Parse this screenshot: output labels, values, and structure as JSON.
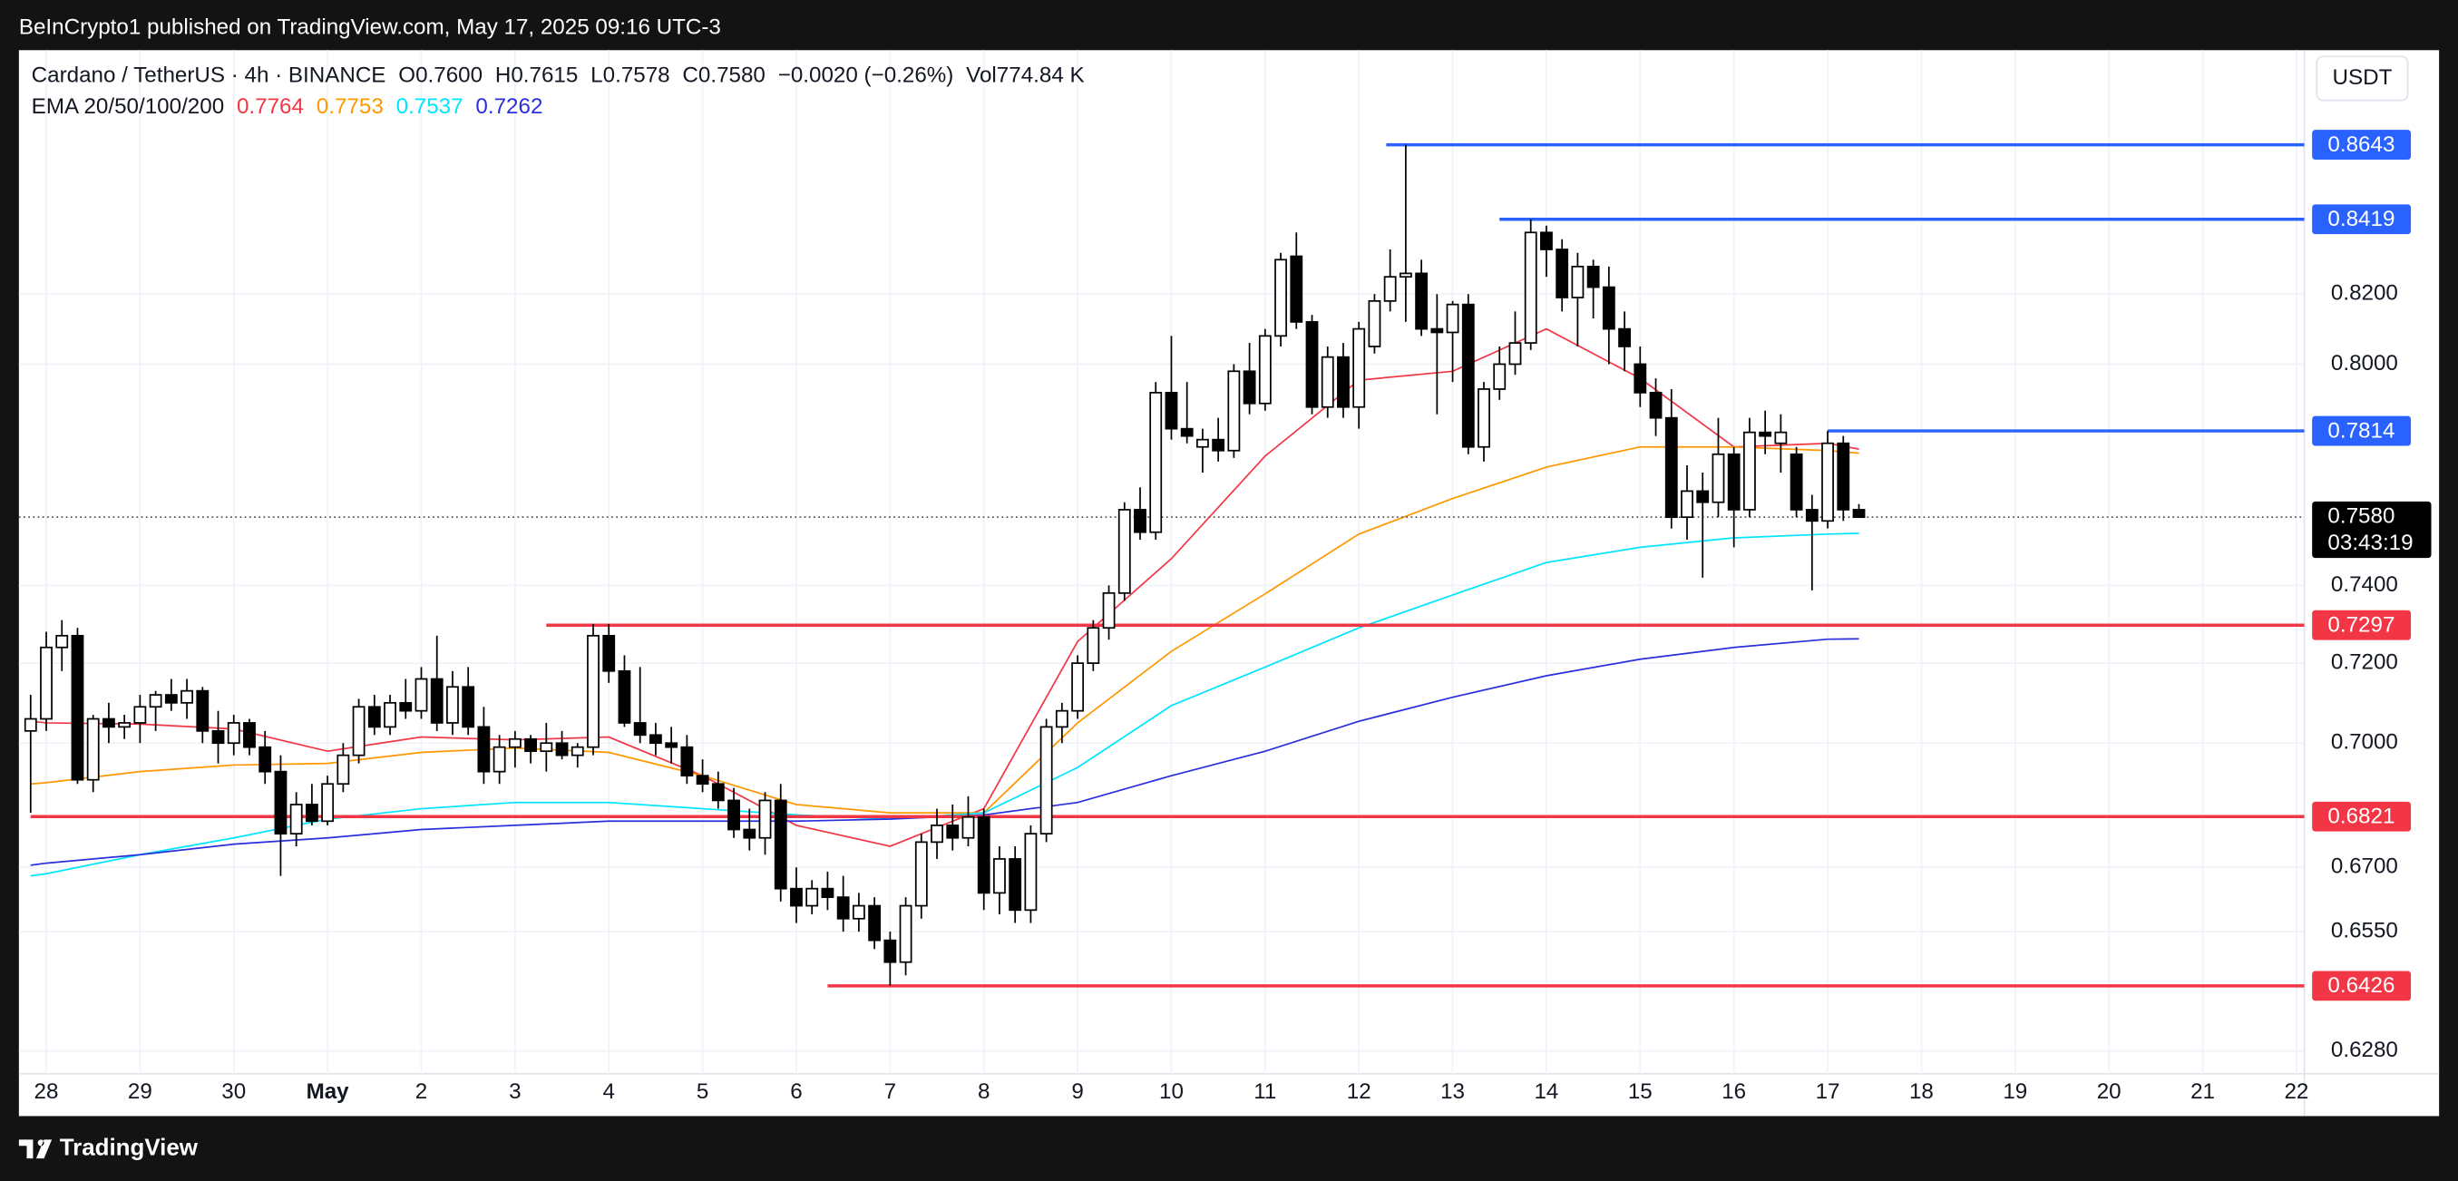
{
  "header": {
    "published": "BeInCrypto1 published on TradingView.com, May 17, 2025 09:16 UTC-3",
    "symbol": "Cardano / TetherUS · 4h · BINANCE",
    "ohlc": [
      {
        "key": "O",
        "value": "0.7600"
      },
      {
        "key": "H",
        "value": "0.7615"
      },
      {
        "key": "L",
        "value": "0.7578"
      },
      {
        "key": "C",
        "value": "0.7580"
      }
    ],
    "change": "−0.0020 (−0.26%)",
    "volume": {
      "key": "Vol",
      "value": "774.84 K"
    },
    "ema_label": "EMA 20/50/100/200"
  },
  "footer": {
    "brand": "TradingView"
  },
  "chart_data": {
    "type": "candlestick",
    "log_scale": true,
    "grid": true,
    "currency": "USDT",
    "countdown": "03:43:19",
    "up_color": "#ffffff",
    "down_color": "#000000",
    "wick_color": "#000000",
    "xlim": [
      -7,
      578
    ],
    "ylim": [
      0.623,
      0.8936
    ],
    "xticks": [
      {
        "value": 0,
        "label": "28"
      },
      {
        "value": 24,
        "label": "29"
      },
      {
        "value": 48,
        "label": "30"
      },
      {
        "value": 72,
        "label": "May"
      },
      {
        "value": 96,
        "label": "2"
      },
      {
        "value": 120,
        "label": "3"
      },
      {
        "value": 144,
        "label": "4"
      },
      {
        "value": 168,
        "label": "5"
      },
      {
        "value": 192,
        "label": "6"
      },
      {
        "value": 216,
        "label": "7"
      },
      {
        "value": 240,
        "label": "8"
      },
      {
        "value": 264,
        "label": "9"
      },
      {
        "value": 288,
        "label": "10"
      },
      {
        "value": 312,
        "label": "11"
      },
      {
        "value": 336,
        "label": "12"
      },
      {
        "value": 360,
        "label": "13"
      },
      {
        "value": 384,
        "label": "14"
      },
      {
        "value": 408,
        "label": "15"
      },
      {
        "value": 432,
        "label": "16"
      },
      {
        "value": 456,
        "label": "17"
      },
      {
        "value": 480,
        "label": "18"
      },
      {
        "value": 504,
        "label": "19"
      },
      {
        "value": 528,
        "label": "20"
      },
      {
        "value": 552,
        "label": "21"
      },
      {
        "value": 576,
        "label": "22"
      }
    ],
    "yticks": [
      {
        "value": 0.628,
        "label": "0.6280"
      },
      {
        "value": 0.655,
        "label": "0.6550"
      },
      {
        "value": 0.67,
        "label": "0.6700"
      },
      {
        "value": 0.7,
        "label": "0.7000"
      },
      {
        "value": 0.72,
        "label": "0.7200"
      },
      {
        "value": 0.74,
        "label": "0.7400"
      },
      {
        "value": 0.8,
        "label": "0.8000"
      },
      {
        "value": 0.82,
        "label": "0.8200"
      }
    ],
    "x": [
      -4,
      0,
      4,
      8,
      12,
      16,
      20,
      24,
      28,
      32,
      36,
      40,
      44,
      48,
      52,
      56,
      60,
      64,
      68,
      72,
      76,
      80,
      84,
      88,
      92,
      96,
      100,
      104,
      108,
      112,
      116,
      120,
      124,
      128,
      132,
      136,
      140,
      144,
      148,
      152,
      156,
      160,
      164,
      168,
      172,
      176,
      180,
      184,
      188,
      192,
      196,
      200,
      204,
      208,
      212,
      216,
      220,
      224,
      228,
      232,
      236,
      240,
      244,
      248,
      252,
      256,
      260,
      264,
      268,
      272,
      276,
      280,
      284,
      288,
      292,
      296,
      300,
      304,
      308,
      312,
      316,
      320,
      324,
      328,
      332,
      336,
      340,
      344,
      348,
      352,
      356,
      360,
      364,
      368,
      372,
      376,
      380,
      384,
      388,
      392,
      396,
      400,
      404,
      408,
      412,
      416,
      420,
      424,
      428,
      432,
      436,
      440,
      444,
      448,
      452,
      456,
      460,
      464
    ],
    "candles": [
      [
        0.703,
        0.712,
        0.683,
        0.706
      ],
      [
        0.706,
        0.728,
        0.703,
        0.724
      ],
      [
        0.724,
        0.731,
        0.718,
        0.727
      ],
      [
        0.727,
        0.729,
        0.69,
        0.691
      ],
      [
        0.691,
        0.707,
        0.688,
        0.706
      ],
      [
        0.706,
        0.71,
        0.7,
        0.704
      ],
      [
        0.704,
        0.707,
        0.701,
        0.705
      ],
      [
        0.705,
        0.712,
        0.7,
        0.709
      ],
      [
        0.709,
        0.713,
        0.703,
        0.712
      ],
      [
        0.712,
        0.716,
        0.708,
        0.71
      ],
      [
        0.71,
        0.716,
        0.706,
        0.713
      ],
      [
        0.713,
        0.714,
        0.7,
        0.703
      ],
      [
        0.703,
        0.708,
        0.695,
        0.7
      ],
      [
        0.7,
        0.707,
        0.697,
        0.705
      ],
      [
        0.705,
        0.706,
        0.697,
        0.699
      ],
      [
        0.699,
        0.703,
        0.69,
        0.693
      ],
      [
        0.693,
        0.697,
        0.668,
        0.678
      ],
      [
        0.678,
        0.688,
        0.675,
        0.685
      ],
      [
        0.685,
        0.69,
        0.68,
        0.681
      ],
      [
        0.681,
        0.692,
        0.68,
        0.69
      ],
      [
        0.69,
        0.7,
        0.688,
        0.697
      ],
      [
        0.697,
        0.711,
        0.695,
        0.709
      ],
      [
        0.709,
        0.712,
        0.702,
        0.704
      ],
      [
        0.704,
        0.712,
        0.702,
        0.71
      ],
      [
        0.71,
        0.716,
        0.706,
        0.708
      ],
      [
        0.708,
        0.719,
        0.706,
        0.716
      ],
      [
        0.716,
        0.727,
        0.703,
        0.705
      ],
      [
        0.705,
        0.718,
        0.702,
        0.714
      ],
      [
        0.714,
        0.719,
        0.702,
        0.704
      ],
      [
        0.704,
        0.709,
        0.69,
        0.693
      ],
      [
        0.693,
        0.702,
        0.69,
        0.699
      ],
      [
        0.699,
        0.703,
        0.694,
        0.701
      ],
      [
        0.701,
        0.702,
        0.695,
        0.698
      ],
      [
        0.698,
        0.705,
        0.693,
        0.7
      ],
      [
        0.7,
        0.703,
        0.696,
        0.697
      ],
      [
        0.697,
        0.7,
        0.694,
        0.699
      ],
      [
        0.699,
        0.73,
        0.697,
        0.727
      ],
      [
        0.727,
        0.73,
        0.715,
        0.718
      ],
      [
        0.718,
        0.722,
        0.704,
        0.705
      ],
      [
        0.705,
        0.719,
        0.7,
        0.702
      ],
      [
        0.702,
        0.705,
        0.697,
        0.7
      ],
      [
        0.7,
        0.704,
        0.695,
        0.699
      ],
      [
        0.699,
        0.702,
        0.69,
        0.692
      ],
      [
        0.692,
        0.696,
        0.688,
        0.69
      ],
      [
        0.69,
        0.693,
        0.684,
        0.686
      ],
      [
        0.686,
        0.689,
        0.677,
        0.679
      ],
      [
        0.679,
        0.684,
        0.674,
        0.677
      ],
      [
        0.677,
        0.688,
        0.673,
        0.686
      ],
      [
        0.686,
        0.69,
        0.662,
        0.665
      ],
      [
        0.665,
        0.67,
        0.657,
        0.661
      ],
      [
        0.661,
        0.667,
        0.659,
        0.665
      ],
      [
        0.665,
        0.669,
        0.66,
        0.663
      ],
      [
        0.663,
        0.668,
        0.655,
        0.658
      ],
      [
        0.658,
        0.664,
        0.655,
        0.661
      ],
      [
        0.661,
        0.663,
        0.651,
        0.653
      ],
      [
        0.653,
        0.655,
        0.6426,
        0.648
      ],
      [
        0.648,
        0.663,
        0.645,
        0.661
      ],
      [
        0.661,
        0.678,
        0.658,
        0.676
      ],
      [
        0.676,
        0.684,
        0.672,
        0.68
      ],
      [
        0.68,
        0.685,
        0.674,
        0.677
      ],
      [
        0.677,
        0.687,
        0.675,
        0.682
      ],
      [
        0.682,
        0.684,
        0.66,
        0.664
      ],
      [
        0.664,
        0.675,
        0.659,
        0.672
      ],
      [
        0.672,
        0.675,
        0.657,
        0.66
      ],
      [
        0.66,
        0.68,
        0.657,
        0.678
      ],
      [
        0.678,
        0.706,
        0.676,
        0.704
      ],
      [
        0.704,
        0.71,
        0.7,
        0.708
      ],
      [
        0.708,
        0.722,
        0.706,
        0.72
      ],
      [
        0.72,
        0.731,
        0.718,
        0.729
      ],
      [
        0.729,
        0.74,
        0.726,
        0.738
      ],
      [
        0.738,
        0.762,
        0.736,
        0.76
      ],
      [
        0.76,
        0.766,
        0.752,
        0.754
      ],
      [
        0.754,
        0.795,
        0.752,
        0.792
      ],
      [
        0.792,
        0.808,
        0.779,
        0.782
      ],
      [
        0.782,
        0.795,
        0.778,
        0.78
      ],
      [
        0.777,
        0.782,
        0.77,
        0.779
      ],
      [
        0.779,
        0.785,
        0.773,
        0.776
      ],
      [
        0.776,
        0.8,
        0.774,
        0.798
      ],
      [
        0.798,
        0.806,
        0.786,
        0.789
      ],
      [
        0.789,
        0.81,
        0.787,
        0.808
      ],
      [
        0.808,
        0.832,
        0.805,
        0.83
      ],
      [
        0.831,
        0.838,
        0.81,
        0.812
      ],
      [
        0.812,
        0.814,
        0.786,
        0.788
      ],
      [
        0.788,
        0.805,
        0.785,
        0.802
      ],
      [
        0.802,
        0.806,
        0.785,
        0.788
      ],
      [
        0.788,
        0.812,
        0.782,
        0.81
      ],
      [
        0.805,
        0.82,
        0.803,
        0.818
      ],
      [
        0.818,
        0.833,
        0.815,
        0.825
      ],
      [
        0.825,
        0.8643,
        0.812,
        0.826
      ],
      [
        0.826,
        0.83,
        0.808,
        0.81
      ],
      [
        0.81,
        0.82,
        0.786,
        0.809
      ],
      [
        0.809,
        0.818,
        0.795,
        0.817
      ],
      [
        0.817,
        0.82,
        0.775,
        0.777
      ],
      [
        0.777,
        0.795,
        0.773,
        0.793
      ],
      [
        0.793,
        0.805,
        0.79,
        0.8
      ],
      [
        0.8,
        0.815,
        0.797,
        0.806
      ],
      [
        0.806,
        0.8419,
        0.804,
        0.838
      ],
      [
        0.838,
        0.84,
        0.825,
        0.833
      ],
      [
        0.833,
        0.836,
        0.815,
        0.819
      ],
      [
        0.819,
        0.832,
        0.805,
        0.828
      ],
      [
        0.828,
        0.83,
        0.813,
        0.822
      ],
      [
        0.822,
        0.828,
        0.8,
        0.81
      ],
      [
        0.81,
        0.815,
        0.798,
        0.805
      ],
      [
        0.8,
        0.805,
        0.788,
        0.792
      ],
      [
        0.792,
        0.796,
        0.78,
        0.785
      ],
      [
        0.785,
        0.793,
        0.755,
        0.758
      ],
      [
        0.758,
        0.772,
        0.752,
        0.765
      ],
      [
        0.765,
        0.77,
        0.742,
        0.762
      ],
      [
        0.762,
        0.785,
        0.758,
        0.775
      ],
      [
        0.775,
        0.777,
        0.75,
        0.76
      ],
      [
        0.76,
        0.785,
        0.758,
        0.781
      ],
      [
        0.781,
        0.787,
        0.775,
        0.78
      ],
      [
        0.778,
        0.786,
        0.77,
        0.781
      ],
      [
        0.775,
        0.777,
        0.758,
        0.76
      ],
      [
        0.76,
        0.764,
        0.7387,
        0.757
      ],
      [
        0.757,
        0.7814,
        0.755,
        0.778
      ],
      [
        0.778,
        0.78,
        0.757,
        0.76
      ],
      [
        0.76,
        0.7615,
        0.7578,
        0.758
      ]
    ],
    "ema_x": [
      -4,
      0,
      24,
      48,
      72,
      96,
      120,
      144,
      168,
      192,
      216,
      240,
      264,
      288,
      312,
      336,
      360,
      384,
      408,
      432,
      456,
      464
    ],
    "emas": [
      {
        "color": "#f23645",
        "label": "0.7764",
        "values": [
          0.7054,
          0.705,
          0.7047,
          0.7035,
          0.698,
          0.7015,
          0.7008,
          0.7015,
          0.692,
          0.68,
          0.675,
          0.684,
          0.7255,
          0.747,
          0.7745,
          0.7955,
          0.798,
          0.81,
          0.796,
          0.777,
          0.778,
          0.7764
        ]
      },
      {
        "color": "#ff9800",
        "label": "0.7753",
        "values": [
          0.69,
          0.6903,
          0.693,
          0.6946,
          0.695,
          0.6977,
          0.6988,
          0.6977,
          0.692,
          0.685,
          0.683,
          0.683,
          0.705,
          0.723,
          0.7378,
          0.7535,
          0.763,
          0.7715,
          0.777,
          0.777,
          0.776,
          0.7753
        ]
      },
      {
        "color": "#00e5ff",
        "label": "0.7537",
        "values": [
          0.668,
          0.6685,
          0.673,
          0.677,
          0.6815,
          0.684,
          0.6855,
          0.6855,
          0.684,
          0.6825,
          0.6815,
          0.683,
          0.694,
          0.7093,
          0.719,
          0.729,
          0.7375,
          0.746,
          0.75,
          0.7525,
          0.7535,
          0.7537
        ]
      },
      {
        "color": "#2a2edc",
        "label": "0.7262",
        "values": [
          0.6705,
          0.671,
          0.673,
          0.6755,
          0.677,
          0.679,
          0.68,
          0.681,
          0.681,
          0.681,
          0.6815,
          0.6825,
          0.6855,
          0.692,
          0.698,
          0.7054,
          0.7114,
          0.7168,
          0.721,
          0.724,
          0.7261,
          0.7262
        ]
      }
    ],
    "levels": [
      {
        "value": 0.8643,
        "start": 343,
        "color": "#2962ff"
      },
      {
        "value": 0.8419,
        "start": 372,
        "color": "#2962ff"
      },
      {
        "value": 0.7814,
        "start": 456,
        "color": "#2962ff"
      },
      {
        "value": 0.7297,
        "start": 128,
        "color": "#f23645"
      },
      {
        "value": 0.6821,
        "start": -4,
        "color": "#f23645"
      },
      {
        "value": 0.6426,
        "start": 200,
        "color": "#f23645"
      }
    ],
    "last_price": {
      "value": 0.758,
      "label": "0.7580"
    }
  }
}
